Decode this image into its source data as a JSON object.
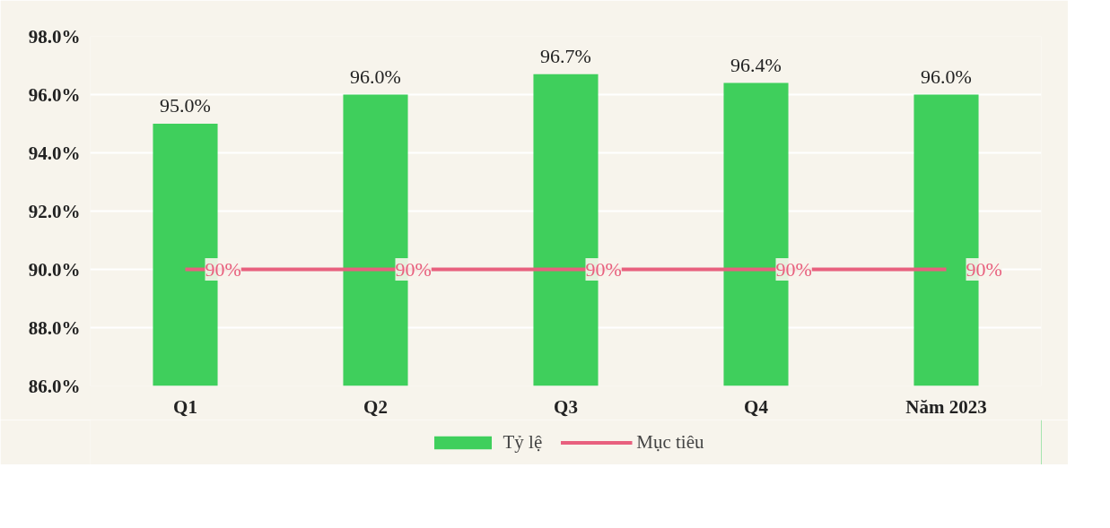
{
  "chart_data": {
    "type": "bar",
    "categories": [
      "Q1",
      "Q2",
      "Q3",
      "Q4",
      "Năm 2023"
    ],
    "series": [
      {
        "name": "Tỷ lệ",
        "color": "#3fcf5c",
        "values": [
          95.0,
          96.0,
          96.7,
          96.4,
          96.0
        ],
        "value_labels": [
          "95.0%",
          "96.0%",
          "96.7%",
          "96.4%",
          "96.0%"
        ]
      },
      {
        "name": "Mục tiêu",
        "type": "line",
        "color": "#e8607e",
        "values": [
          90,
          90,
          90,
          90,
          90
        ],
        "value_labels": [
          "90%",
          "90%",
          "90%",
          "90%",
          "90%"
        ]
      }
    ],
    "ylim": [
      86,
      98
    ],
    "yticks": [
      {
        "value": 86,
        "label": "86.0%"
      },
      {
        "value": 88,
        "label": "88.0%"
      },
      {
        "value": 90,
        "label": "90.0%"
      },
      {
        "value": 92,
        "label": "92.0%"
      },
      {
        "value": 94,
        "label": "94.0%"
      },
      {
        "value": 96,
        "label": "96.0%"
      },
      {
        "value": 98,
        "label": "98.0%"
      }
    ],
    "grid": "y",
    "legend": "bottom"
  }
}
